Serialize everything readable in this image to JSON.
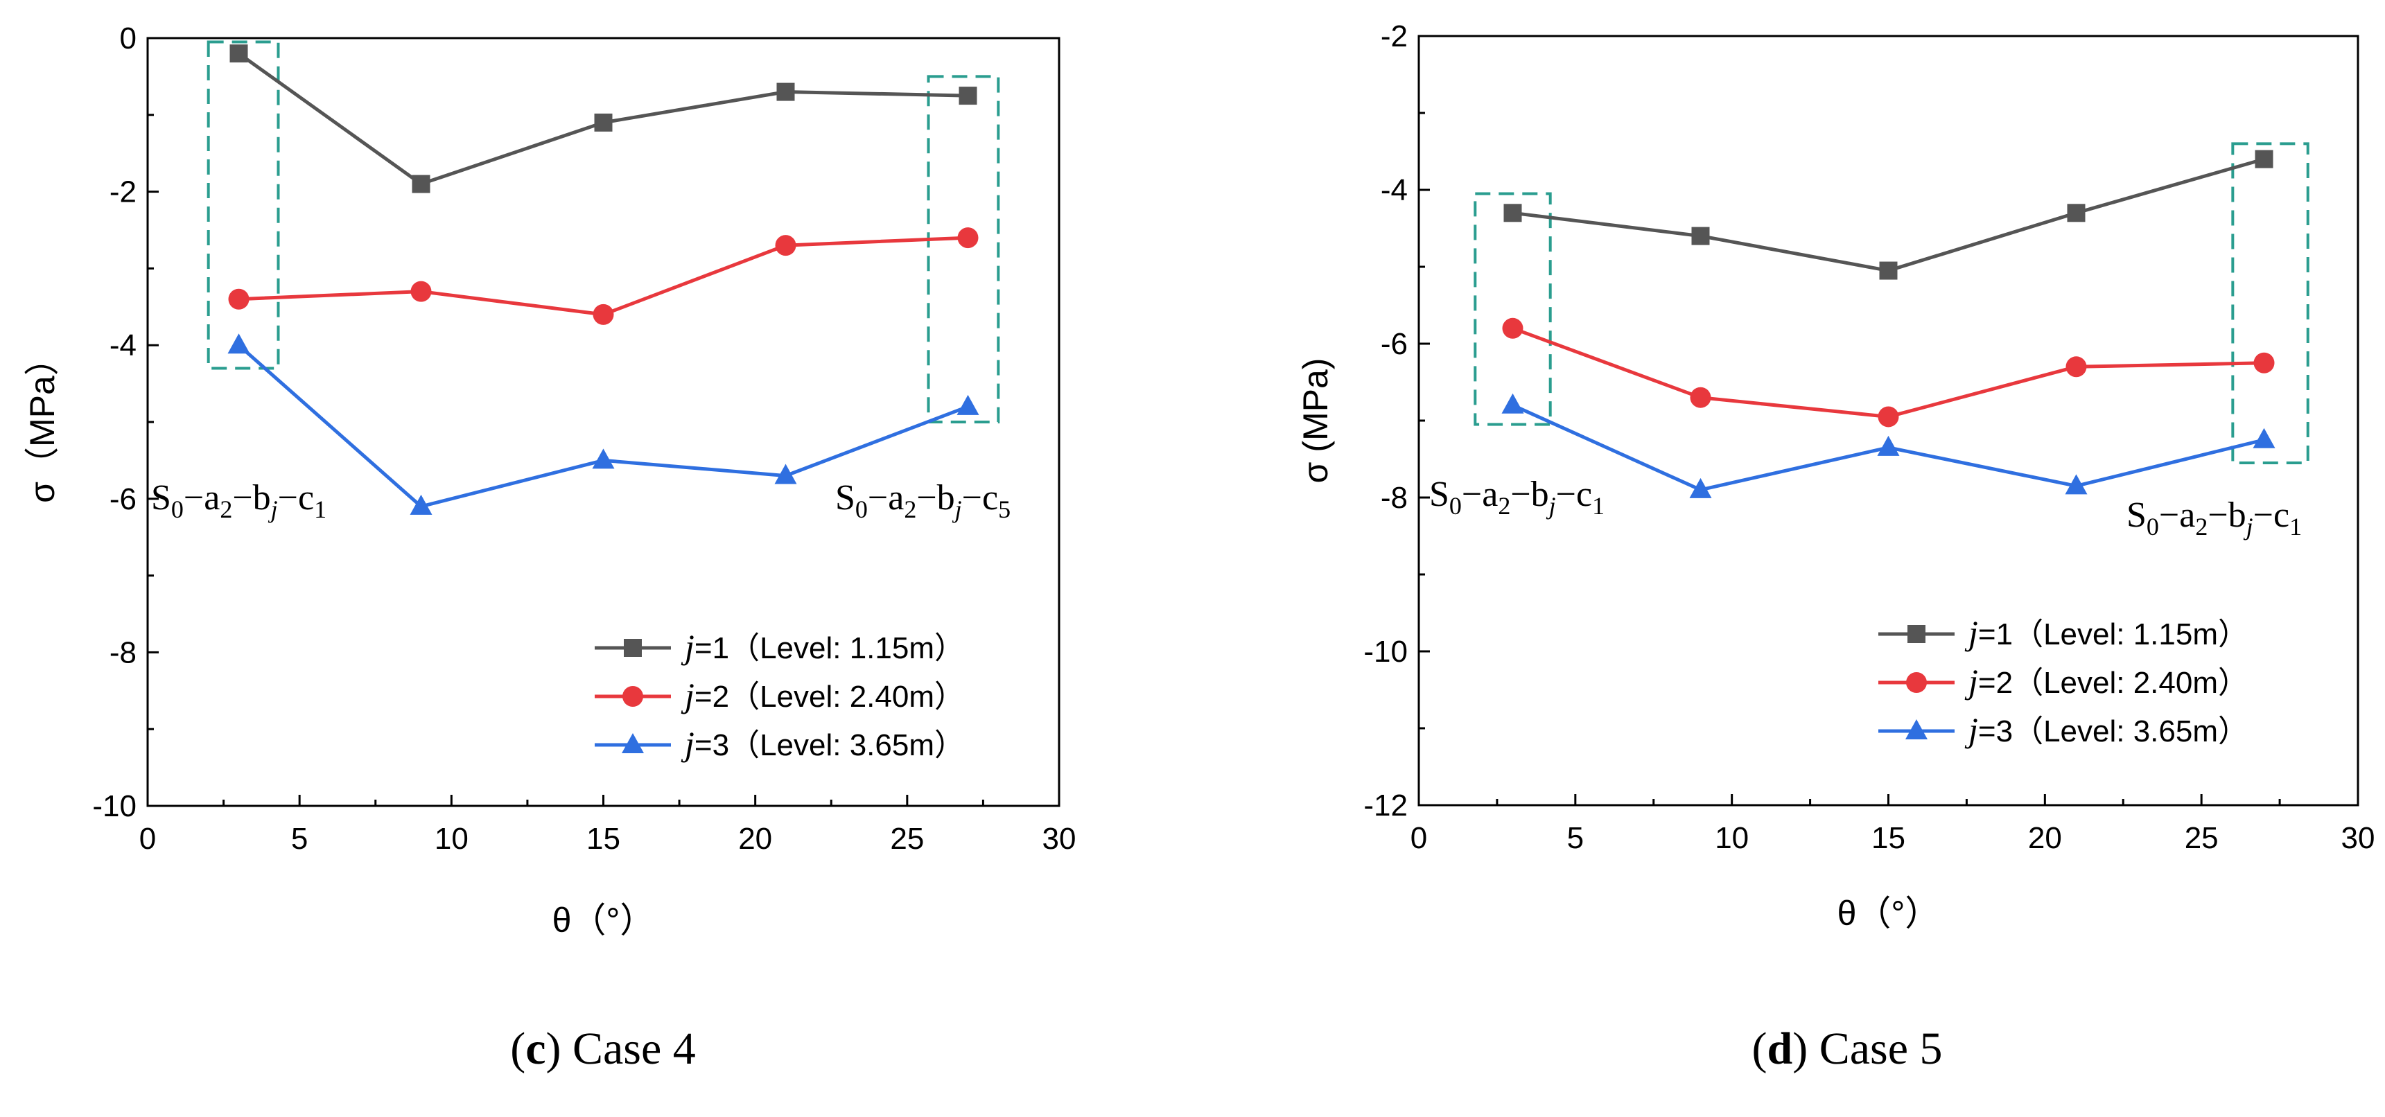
{
  "chart_data": [
    {
      "type": "line",
      "panel": "c",
      "caption_letter": "c",
      "caption_text": " Case 4",
      "xlabel": "θ（°）",
      "ylabel": "σ（MPa）",
      "xlim": [
        0,
        30
      ],
      "ylim": [
        -10,
        0
      ],
      "xticks": [
        0,
        5,
        10,
        15,
        20,
        25,
        30
      ],
      "yticks": [
        0,
        -2,
        -4,
        -6,
        -8,
        -10
      ],
      "x": [
        3,
        9,
        15,
        21,
        27
      ],
      "series": [
        {
          "name": "j=1（Level: 1.15m）",
          "var": "j",
          "rest": "=1（Level: 1.15m）",
          "color": "#555555",
          "marker": "square",
          "values": [
            -0.2,
            -1.9,
            -1.1,
            -0.7,
            -0.75
          ]
        },
        {
          "name": "j=2（Level: 2.40m）",
          "var": "j",
          "rest": "=2（Level: 2.40m）",
          "color": "#e8383d",
          "marker": "circle",
          "values": [
            -3.4,
            -3.3,
            -3.6,
            -2.7,
            -2.6
          ]
        },
        {
          "name": "j=3（Level: 3.65m）",
          "var": "j",
          "rest": "=3（Level: 3.65m）",
          "color": "#2f6fe0",
          "marker": "triangle",
          "values": [
            -4.0,
            -6.1,
            -5.5,
            -5.7,
            -4.8
          ]
        }
      ],
      "annotations": [
        {
          "label": "S0−a2−bj−c1",
          "base1": "S",
          "sub1": "0",
          "mid1": "−a",
          "sub2": "2",
          "mid2": "−b",
          "sub3": "j",
          "mid3": "−c",
          "sub4": "1",
          "x_range": [
            2.0,
            4.3
          ],
          "y_range": [
            -4.3,
            -0.05
          ]
        },
        {
          "label": "S0−a2−bj−c5",
          "base1": "S",
          "sub1": "0",
          "mid1": "−a",
          "sub2": "2",
          "mid2": "−b",
          "sub3": "j",
          "mid3": "−c",
          "sub4": "5",
          "x_range": [
            25.7,
            28.0
          ],
          "y_range": [
            -5.0,
            -0.5
          ]
        }
      ]
    },
    {
      "type": "line",
      "panel": "d",
      "caption_letter": "d",
      "caption_text": " Case 5",
      "xlabel": "θ（°）",
      "ylabel": "σ (MPa)",
      "xlim": [
        0,
        30
      ],
      "ylim": [
        -12,
        -2
      ],
      "xticks": [
        0,
        5,
        10,
        15,
        20,
        25,
        30
      ],
      "yticks": [
        -2,
        -4,
        -6,
        -8,
        -10,
        -12
      ],
      "x": [
        3,
        9,
        15,
        21,
        27
      ],
      "series": [
        {
          "name": "j=1（Level: 1.15m）",
          "var": "j",
          "rest": "=1（Level: 1.15m）",
          "color": "#555555",
          "marker": "square",
          "values": [
            -4.3,
            -4.6,
            -5.05,
            -4.3,
            -3.6
          ]
        },
        {
          "name": "j=2（Level: 2.40m）",
          "var": "j",
          "rest": "=2（Level: 2.40m）",
          "color": "#e8383d",
          "marker": "circle",
          "values": [
            -5.8,
            -6.7,
            -6.95,
            -6.3,
            -6.25
          ]
        },
        {
          "name": "j=3（Level: 3.65m）",
          "var": "j",
          "rest": "=3（Level: 3.65m）",
          "color": "#2f6fe0",
          "marker": "triangle",
          "values": [
            -6.8,
            -7.9,
            -7.35,
            -7.85,
            -7.25
          ]
        }
      ],
      "annotations": [
        {
          "label": "S0−a2−bj−c1",
          "base1": "S",
          "sub1": "0",
          "mid1": "−a",
          "sub2": "2",
          "mid2": "−b",
          "sub3": "j",
          "mid3": "−c",
          "sub4": "1",
          "x_range": [
            1.8,
            4.2
          ],
          "y_range": [
            -7.05,
            -4.05
          ]
        },
        {
          "label": "S0−a2−bj−c1",
          "base1": "S",
          "sub1": "0",
          "mid1": "−a",
          "sub2": "2",
          "mid2": "−b",
          "sub3": "j",
          "mid3": "−c",
          "sub4": "1",
          "x_range": [
            26.0,
            28.4
          ],
          "y_range": [
            -7.55,
            -3.4
          ]
        }
      ]
    }
  ]
}
